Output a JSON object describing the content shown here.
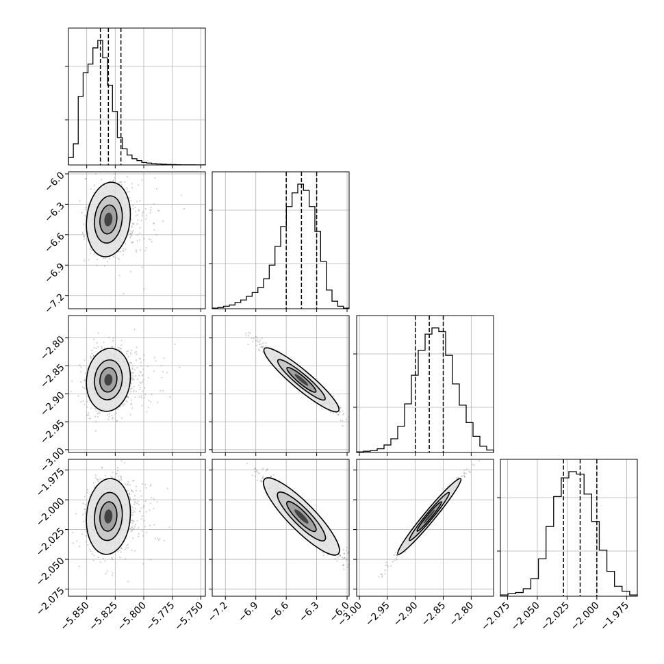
{
  "chart_data": {
    "type": "corner",
    "grid": true,
    "params": [
      {
        "range": [
          -5.866,
          -5.746
        ],
        "ticks": [
          -5.85,
          -5.825,
          -5.8,
          -5.775,
          -5.75
        ],
        "tick_labels": [
          "−5.850",
          "−5.825",
          "−5.800",
          "−5.775",
          "−5.750"
        ],
        "quantiles": [
          -5.838,
          -5.831,
          -5.82
        ],
        "hist": [
          0.06,
          0.17,
          0.55,
          0.74,
          0.81,
          0.94,
          1.0,
          0.86,
          0.64,
          0.43,
          0.22,
          0.13,
          0.08,
          0.05,
          0.035,
          0.02,
          0.015,
          0.01,
          0.008,
          0.006,
          0.004,
          0.003,
          0.002,
          0.0015,
          0.001,
          0.001,
          0.0005,
          0.0005
        ],
        "center": -5.831,
        "sd": 0.0075
      },
      {
        "range": [
          -7.33,
          -5.98
        ],
        "ticks": [
          -7.2,
          -6.9,
          -6.6,
          -6.3,
          -6.0
        ],
        "tick_labels": [
          "−7.2",
          "−6.9",
          "−6.6",
          "−6.3",
          "−6.0"
        ],
        "quantiles": [
          -6.6,
          -6.45,
          -6.3
        ],
        "hist": [
          0.005,
          0.01,
          0.02,
          0.03,
          0.05,
          0.07,
          0.1,
          0.13,
          0.17,
          0.24,
          0.35,
          0.5,
          0.66,
          0.82,
          0.93,
          1.0,
          0.95,
          0.82,
          0.62,
          0.38,
          0.15,
          0.06,
          0.02,
          0.005
        ],
        "center": -6.45,
        "sd": 0.15
      },
      {
        "range": [
          -3.005,
          -2.76
        ],
        "ticks": [
          -3.0,
          -2.95,
          -2.9,
          -2.85,
          -2.8
        ],
        "tick_labels": [
          "−3.00",
          "−2.95",
          "−2.90",
          "−2.85",
          "−2.80"
        ],
        "quantiles": [
          -2.9,
          -2.875,
          -2.85
        ],
        "hist": [
          0.005,
          0.01,
          0.015,
          0.03,
          0.06,
          0.11,
          0.21,
          0.39,
          0.62,
          0.82,
          0.95,
          1.0,
          0.97,
          0.78,
          0.55,
          0.38,
          0.24,
          0.13,
          0.05,
          0.02
        ],
        "center": -2.875,
        "sd": 0.023
      },
      {
        "range": [
          -2.081,
          -1.966
        ],
        "ticks": [
          -2.075,
          -2.05,
          -2.025,
          -2.0,
          -1.975
        ],
        "tick_labels": [
          "−2.075",
          "−2.050",
          "−2.025",
          "−2.000",
          "−1.975"
        ],
        "quantiles": [
          -2.028,
          -2.014,
          -2.0
        ],
        "hist": [
          0.01,
          0.02,
          0.03,
          0.06,
          0.14,
          0.3,
          0.56,
          0.8,
          0.95,
          1.0,
          0.98,
          0.82,
          0.6,
          0.37,
          0.2,
          0.08,
          0.04,
          0.01
        ],
        "center": -2.014,
        "sd": 0.013
      }
    ],
    "correlations": {
      "1_0": 0.15,
      "2_0": 0.1,
      "2_1": -0.97,
      "3_0": 0.1,
      "3_1": -0.95,
      "3_2": 0.99
    }
  }
}
